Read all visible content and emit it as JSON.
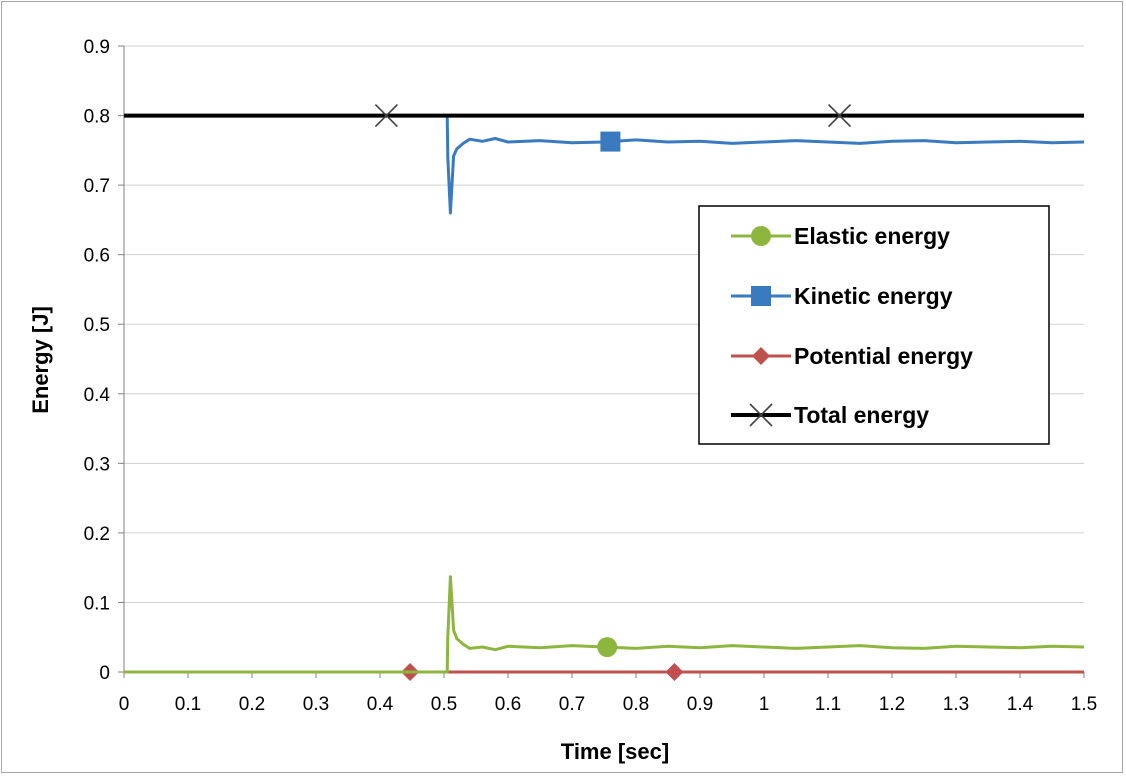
{
  "chart_data": {
    "type": "line",
    "title": "",
    "xlabel": "Time [sec]",
    "ylabel": "Energy [J]",
    "xlim": [
      0,
      1.5
    ],
    "ylim": [
      0,
      0.9
    ],
    "x_ticks": [
      "0",
      "0.1",
      "0.2",
      "0.3",
      "0.4",
      "0.5",
      "0.6",
      "0.7",
      "0.8",
      "0.9",
      "1",
      "1.1",
      "1.2",
      "1.3",
      "1.4",
      "1.5"
    ],
    "y_ticks": [
      "0",
      "0.1",
      "0.2",
      "0.3",
      "0.4",
      "0.5",
      "0.6",
      "0.7",
      "0.8",
      "0.9"
    ],
    "grid": "horizontal",
    "legend_position": "center-right",
    "series": [
      {
        "name": "Elastic energy",
        "color": "#8db63f",
        "marker": "circle",
        "marker_x": [
          0.755
        ],
        "x": [
          0,
          0.505,
          0.506,
          0.51,
          0.515,
          0.52,
          0.53,
          0.54,
          0.56,
          0.58,
          0.6,
          0.65,
          0.7,
          0.75,
          0.8,
          0.85,
          0.9,
          0.95,
          1.0,
          1.05,
          1.1,
          1.15,
          1.2,
          1.25,
          1.3,
          1.35,
          1.4,
          1.45,
          1.5
        ],
        "y": [
          0,
          0,
          0.05,
          0.137,
          0.06,
          0.048,
          0.04,
          0.034,
          0.036,
          0.032,
          0.037,
          0.035,
          0.038,
          0.036,
          0.034,
          0.037,
          0.035,
          0.038,
          0.036,
          0.034,
          0.036,
          0.038,
          0.035,
          0.034,
          0.037,
          0.036,
          0.035,
          0.037,
          0.036
        ]
      },
      {
        "name": "Kinetic energy",
        "color": "#3a7abf",
        "marker": "square",
        "marker_x": [
          0.76
        ],
        "x": [
          0,
          0.505,
          0.506,
          0.51,
          0.515,
          0.52,
          0.53,
          0.54,
          0.56,
          0.58,
          0.6,
          0.65,
          0.7,
          0.75,
          0.8,
          0.85,
          0.9,
          0.95,
          1.0,
          1.05,
          1.1,
          1.15,
          1.2,
          1.25,
          1.3,
          1.35,
          1.4,
          1.45,
          1.5
        ],
        "y": [
          0.8,
          0.8,
          0.74,
          0.66,
          0.742,
          0.752,
          0.76,
          0.766,
          0.763,
          0.767,
          0.762,
          0.764,
          0.761,
          0.762,
          0.765,
          0.762,
          0.763,
          0.76,
          0.762,
          0.764,
          0.762,
          0.76,
          0.763,
          0.764,
          0.761,
          0.762,
          0.763,
          0.761,
          0.762
        ]
      },
      {
        "name": "Potential energy",
        "color": "#c0504d",
        "marker": "diamond",
        "marker_x": [
          0.447,
          0.86
        ],
        "x": [
          0,
          1.5
        ],
        "y": [
          0,
          0
        ]
      },
      {
        "name": "Total energy",
        "color": "#000000",
        "marker": "x",
        "marker_x": [
          0.41,
          1.118
        ],
        "x": [
          0,
          1.5
        ],
        "y": [
          0.8,
          0.8
        ]
      }
    ]
  }
}
